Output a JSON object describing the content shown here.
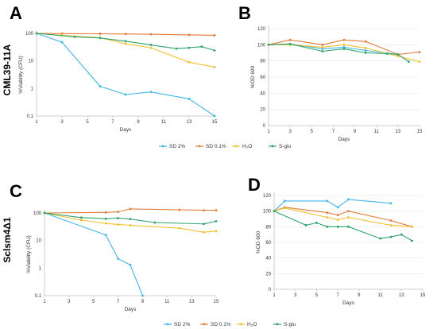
{
  "figure": {
    "row_labels": [
      "CML39-11A",
      "Sclsm4Δ1"
    ]
  },
  "legend": {
    "entries": [
      "SD 2%",
      "SD 0.1%",
      "H₂O",
      "S-glu"
    ]
  },
  "colors": {
    "SD 2%": "#41b6e6",
    "SD 0.1%": "#e07b39",
    "H₂O": "#f2c12e",
    "S-glu": "#2ea36b"
  },
  "chart_data": [
    {
      "panel": "A",
      "type": "line",
      "scale": "log",
      "xlabel": "Days",
      "ylabel": "%Viability (CFU)",
      "xlim": [
        1,
        15
      ],
      "xticks": [
        1,
        3,
        5,
        7,
        9,
        11,
        13,
        15
      ],
      "ylim": [
        0.1,
        100
      ],
      "yticks": [
        0.1,
        1,
        10,
        100
      ],
      "ytick_labels": [
        "0.1",
        "1",
        "10",
        "100"
      ],
      "series": [
        {
          "name": "SD 2%",
          "x": [
            1,
            3,
            6,
            8,
            10,
            13,
            15
          ],
          "y": [
            100,
            48,
            1.2,
            0.6,
            0.75,
            0.42,
            0.1
          ]
        },
        {
          "name": "SD 0.1%",
          "x": [
            1,
            3,
            6,
            8,
            10,
            13,
            15
          ],
          "y": [
            100,
            98,
            97,
            95,
            93,
            88,
            85
          ]
        },
        {
          "name": "H₂O",
          "x": [
            1,
            3,
            6,
            8,
            10,
            13,
            15
          ],
          "y": [
            100,
            85,
            70,
            42,
            30,
            9,
            6
          ]
        },
        {
          "name": "S-glu",
          "x": [
            1,
            4,
            6,
            8,
            10,
            12,
            13,
            14,
            15
          ],
          "y": [
            100,
            75,
            68,
            52,
            38,
            28,
            30,
            33,
            24
          ]
        }
      ]
    },
    {
      "panel": "B",
      "type": "line",
      "scale": "linear",
      "xlabel": "Days",
      "ylabel": "%OD 600",
      "xlim": [
        1,
        15
      ],
      "xticks": [
        1,
        3,
        5,
        7,
        9,
        11,
        13,
        15
      ],
      "ylim": [
        0,
        120
      ],
      "yticks": [
        0,
        20,
        40,
        60,
        80,
        100,
        120
      ],
      "ytick_labels": [
        "0",
        "20",
        "40",
        "60",
        "80",
        "100",
        "120"
      ],
      "series": [
        {
          "name": "SD 2%",
          "x": [
            1,
            3,
            6,
            8,
            10,
            13
          ],
          "y": [
            100,
            101,
            95,
            97,
            93,
            88
          ]
        },
        {
          "name": "SD 0.1%",
          "x": [
            1,
            3,
            6,
            8,
            10,
            13,
            15
          ],
          "y": [
            100,
            106,
            100,
            106,
            104,
            88,
            91
          ]
        },
        {
          "name": "H₂O",
          "x": [
            1,
            3,
            6,
            8,
            10,
            13,
            15
          ],
          "y": [
            100,
            100,
            97,
            100,
            96,
            86,
            79
          ]
        },
        {
          "name": "S-glu",
          "x": [
            1,
            3,
            6,
            8,
            10,
            12,
            13,
            14
          ],
          "y": [
            100,
            101,
            92,
            95,
            90,
            89,
            88,
            79
          ]
        }
      ]
    },
    {
      "panel": "C",
      "type": "line",
      "scale": "log",
      "xlabel": "Days",
      "ylabel": "%Viability (CFU)",
      "xlim": [
        1,
        15
      ],
      "xticks": [
        1,
        3,
        5,
        7,
        9,
        11,
        13,
        15
      ],
      "ylim": [
        0.1,
        100
      ],
      "yticks": [
        0.1,
        1,
        10,
        100
      ],
      "ytick_labels": [
        "0.1",
        "1",
        "10",
        "100"
      ],
      "series": [
        {
          "name": "SD 2%",
          "x": [
            1,
            6,
            7,
            8,
            9
          ],
          "y": [
            100,
            16,
            2.2,
            1.3,
            0.1
          ]
        },
        {
          "name": "SD 0.1%",
          "x": [
            1,
            6,
            7,
            8,
            12,
            14,
            15
          ],
          "y": [
            100,
            105,
            110,
            140,
            130,
            125,
            125
          ]
        },
        {
          "name": "H₂O",
          "x": [
            1,
            4,
            6,
            7,
            8,
            12,
            14,
            15
          ],
          "y": [
            100,
            55,
            42,
            38,
            36,
            28,
            20,
            22
          ]
        },
        {
          "name": "S-glu",
          "x": [
            1,
            4,
            6,
            7,
            8,
            10,
            14,
            15
          ],
          "y": [
            100,
            68,
            62,
            65,
            60,
            45,
            40,
            50
          ]
        }
      ]
    },
    {
      "panel": "D",
      "type": "line",
      "scale": "linear",
      "xlabel": "Days",
      "ylabel": "%OD 600",
      "xlim": [
        1,
        15
      ],
      "xticks": [
        1,
        3,
        5,
        7,
        9,
        11,
        13,
        15
      ],
      "ylim": [
        0,
        120
      ],
      "yticks": [
        0,
        20,
        40,
        60,
        80,
        100,
        120
      ],
      "ytick_labels": [
        "0",
        "20",
        "40",
        "60",
        "80",
        "100",
        "120"
      ],
      "series": [
        {
          "name": "SD 2%",
          "x": [
            1,
            2,
            6,
            7,
            8,
            12
          ],
          "y": [
            100,
            113,
            113,
            105,
            115,
            110
          ]
        },
        {
          "name": "SD 0.1%",
          "x": [
            1,
            2,
            6,
            7,
            8,
            12,
            14
          ],
          "y": [
            100,
            105,
            98,
            95,
            100,
            88,
            80
          ]
        },
        {
          "name": "H₂O",
          "x": [
            1,
            2,
            6,
            7,
            8,
            12,
            14
          ],
          "y": [
            100,
            104,
            92,
            89,
            92,
            82,
            80
          ]
        },
        {
          "name": "S-glu",
          "x": [
            1,
            4,
            5,
            6,
            7,
            8,
            11,
            12,
            13,
            14
          ],
          "y": [
            100,
            82,
            85,
            80,
            80,
            80,
            65,
            67,
            70,
            62
          ]
        }
      ]
    }
  ]
}
